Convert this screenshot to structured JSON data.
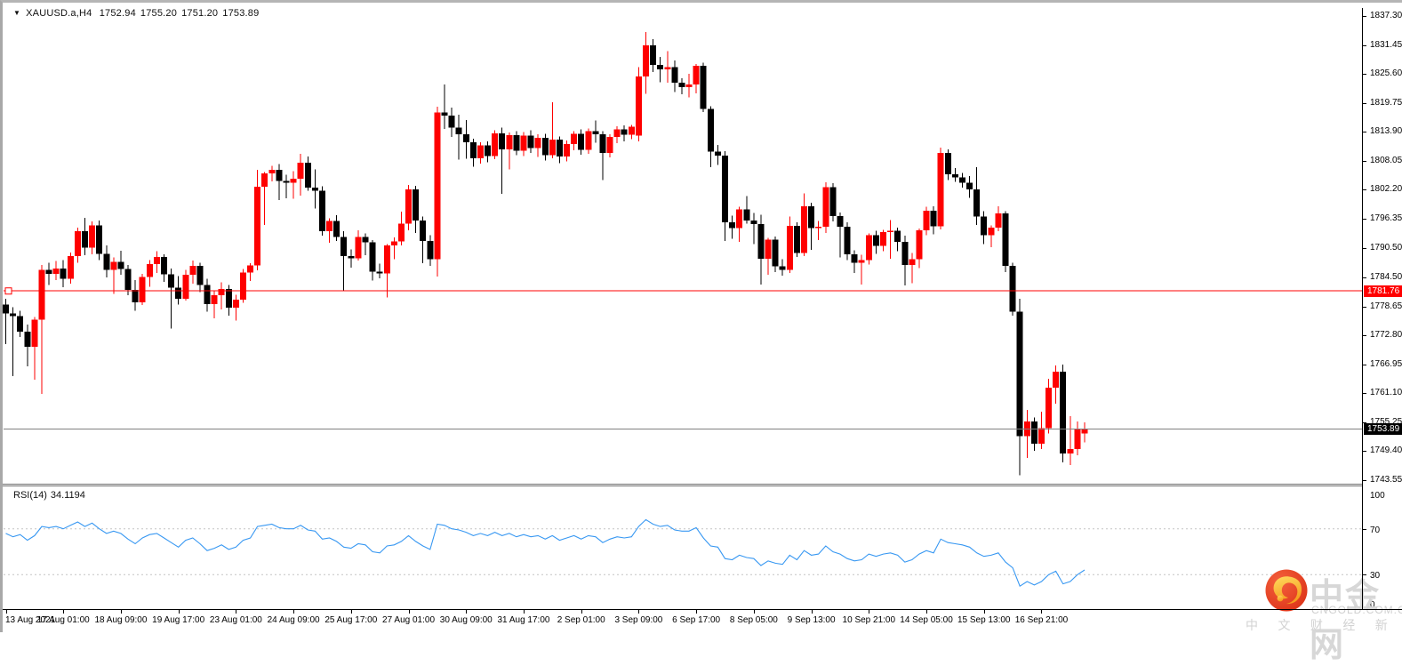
{
  "header": {
    "symbol": "XAUUSD.a,H4",
    "open": "1752.94",
    "high": "1755.20",
    "low": "1751.20",
    "close": "1753.89"
  },
  "price_axis": {
    "ticks": [
      "1837.30",
      "1831.45",
      "1825.60",
      "1819.75",
      "1813.90",
      "1808.05",
      "1802.20",
      "1796.35",
      "1790.50",
      "1784.50",
      "1778.65",
      "1772.80",
      "1766.95",
      "1761.10",
      "1755.25",
      "1749.40",
      "1743.55"
    ]
  },
  "time_axis": {
    "labels": [
      "13 Aug 2021",
      "17 Aug 01:00",
      "18 Aug 09:00",
      "19 Aug 17:00",
      "23 Aug 01:00",
      "24 Aug 09:00",
      "25 Aug 17:00",
      "27 Aug 01:00",
      "30 Aug 09:00",
      "31 Aug 17:00",
      "2 Sep 01:00",
      "3 Sep 09:00",
      "6 Sep 17:00",
      "8 Sep 05:00",
      "9 Sep 13:00",
      "10 Sep 21:00",
      "14 Sep 05:00",
      "15 Sep 13:00",
      "16 Sep 21:00"
    ]
  },
  "price_lines": {
    "resistance": {
      "value": "1781.76",
      "level": 1781.76,
      "color": "#ff0000",
      "label_bg": "#ff0000"
    },
    "current": {
      "value": "1753.89",
      "level": 1753.89,
      "color": "#808080",
      "label_bg": "#000000"
    }
  },
  "rsi": {
    "label": "RSI(14)",
    "value": "34.1194",
    "scale_labels": [
      "100",
      "70",
      "30",
      "0"
    ],
    "scale_values": [
      100,
      70,
      30,
      0
    ],
    "dashed_levels": [
      70,
      30
    ],
    "line_color": "#3898f2",
    "level_color": "#c3c3c3"
  },
  "watermark": {
    "brand": "中金网",
    "domain": "CNGOLD.COM.CN",
    "tagline": "中 文 财 经 新 媒 体",
    "logo_color": "#e5402a",
    "logo_swirl_color": "#ffc83d"
  },
  "colors": {
    "bull": "#fe0000",
    "bear": "#000000",
    "background": "#ffffff",
    "axis_text": "#000000"
  },
  "chart_data": {
    "type": "candlestick",
    "title": "XAUUSD.a,H4  1752.94 1755.20 1751.20 1753.89",
    "symbol": "XAUUSD.a",
    "timeframe": "H4",
    "price_range": [
      1743.55,
      1837.3
    ],
    "price_tick_step": 5.85,
    "bars_per_time_label": 8,
    "horizontal_line": 1781.76,
    "last_price": 1753.89,
    "grid": false,
    "candles_format": [
      "open",
      "high",
      "low",
      "close"
    ],
    "candles": [
      [
        1779.0,
        1780.2,
        1771.0,
        1777.2
      ],
      [
        1777.2,
        1778.5,
        1764.6,
        1776.7
      ],
      [
        1776.7,
        1777.8,
        1772.5,
        1773.5
      ],
      [
        1773.5,
        1775.0,
        1766.5,
        1770.5
      ],
      [
        1770.5,
        1776.5,
        1763.8,
        1776.0
      ],
      [
        1776.0,
        1787.0,
        1761.0,
        1786.0
      ],
      [
        1786.0,
        1787.5,
        1783.0,
        1785.2
      ],
      [
        1785.2,
        1787.8,
        1784.0,
        1786.3
      ],
      [
        1786.3,
        1788.0,
        1782.5,
        1784.2
      ],
      [
        1784.2,
        1789.5,
        1783.2,
        1788.8
      ],
      [
        1788.8,
        1794.6,
        1787.5,
        1793.8
      ],
      [
        1793.8,
        1796.5,
        1789.0,
        1790.5
      ],
      [
        1790.5,
        1795.8,
        1789.2,
        1795.0
      ],
      [
        1795.0,
        1796.0,
        1788.0,
        1789.3
      ],
      [
        1789.3,
        1791.0,
        1784.5,
        1786.0
      ],
      [
        1786.0,
        1788.5,
        1781.2,
        1787.6
      ],
      [
        1787.6,
        1789.9,
        1785.0,
        1786.2
      ],
      [
        1786.2,
        1787.0,
        1780.9,
        1782.0
      ],
      [
        1782.0,
        1784.0,
        1777.8,
        1779.5
      ],
      [
        1779.5,
        1785.2,
        1778.9,
        1784.6
      ],
      [
        1784.6,
        1788.0,
        1782.6,
        1787.2
      ],
      [
        1787.2,
        1789.8,
        1785.4,
        1788.6
      ],
      [
        1788.6,
        1789.2,
        1783.6,
        1785.1
      ],
      [
        1785.1,
        1786.3,
        1774.2,
        1782.4
      ],
      [
        1782.4,
        1784.8,
        1779.0,
        1780.2
      ],
      [
        1780.2,
        1786.0,
        1779.8,
        1785.0
      ],
      [
        1785.0,
        1787.9,
        1783.2,
        1786.8
      ],
      [
        1786.8,
        1787.5,
        1781.5,
        1783.0
      ],
      [
        1783.0,
        1784.2,
        1777.6,
        1779.1
      ],
      [
        1779.1,
        1781.8,
        1776.2,
        1780.9
      ],
      [
        1780.9,
        1783.5,
        1778.0,
        1782.2
      ],
      [
        1782.2,
        1783.0,
        1776.8,
        1778.4
      ],
      [
        1778.4,
        1781.0,
        1775.8,
        1780.0
      ],
      [
        1780.0,
        1786.2,
        1779.4,
        1785.5
      ],
      [
        1785.5,
        1787.4,
        1783.8,
        1786.9
      ],
      [
        1786.9,
        1806.2,
        1785.9,
        1802.8
      ],
      [
        1802.8,
        1805.8,
        1795.1,
        1805.5
      ],
      [
        1805.5,
        1807.0,
        1803.9,
        1806.2
      ],
      [
        1806.2,
        1807.4,
        1800.1,
        1804.0
      ],
      [
        1804.0,
        1805.2,
        1800.5,
        1803.6
      ],
      [
        1803.6,
        1806.0,
        1800.4,
        1804.4
      ],
      [
        1804.4,
        1809.5,
        1801.0,
        1807.7
      ],
      [
        1807.7,
        1808.9,
        1802.0,
        1802.6
      ],
      [
        1802.6,
        1806.3,
        1798.4,
        1802.0
      ],
      [
        1802.0,
        1802.9,
        1792.9,
        1793.8
      ],
      [
        1793.8,
        1796.4,
        1791.5,
        1795.9
      ],
      [
        1795.9,
        1797.1,
        1791.9,
        1792.7
      ],
      [
        1792.7,
        1793.8,
        1781.9,
        1788.8
      ],
      [
        1788.8,
        1790.2,
        1786.5,
        1788.4
      ],
      [
        1788.4,
        1794.0,
        1787.9,
        1792.7
      ],
      [
        1792.7,
        1793.4,
        1789.0,
        1791.6
      ],
      [
        1791.6,
        1792.0,
        1783.9,
        1785.7
      ],
      [
        1785.7,
        1787.3,
        1784.3,
        1785.3
      ],
      [
        1785.3,
        1791.2,
        1780.5,
        1791.0
      ],
      [
        1791.0,
        1792.6,
        1788.2,
        1791.8
      ],
      [
        1791.8,
        1797.8,
        1791.0,
        1795.4
      ],
      [
        1795.4,
        1803.2,
        1794.0,
        1802.3
      ],
      [
        1802.3,
        1803.0,
        1793.5,
        1796.0
      ],
      [
        1796.0,
        1796.8,
        1787.4,
        1791.9
      ],
      [
        1791.9,
        1793.0,
        1786.8,
        1788.2
      ],
      [
        1788.2,
        1819.0,
        1784.7,
        1817.8
      ],
      [
        1817.8,
        1823.5,
        1814.5,
        1817.2
      ],
      [
        1817.2,
        1818.8,
        1812.9,
        1814.8
      ],
      [
        1814.8,
        1817.4,
        1808.3,
        1813.4
      ],
      [
        1813.4,
        1816.3,
        1808.5,
        1811.8
      ],
      [
        1811.8,
        1812.5,
        1806.9,
        1808.6
      ],
      [
        1808.6,
        1811.8,
        1807.5,
        1811.2
      ],
      [
        1811.2,
        1812.0,
        1807.8,
        1809.0
      ],
      [
        1809.0,
        1814.2,
        1808.4,
        1813.6
      ],
      [
        1813.6,
        1814.8,
        1801.4,
        1810.4
      ],
      [
        1810.4,
        1813.8,
        1806.3,
        1813.2
      ],
      [
        1813.2,
        1814.0,
        1809.2,
        1810.1
      ],
      [
        1810.1,
        1813.9,
        1809.0,
        1813.1
      ],
      [
        1813.1,
        1814.2,
        1809.6,
        1810.6
      ],
      [
        1810.6,
        1813.4,
        1808.8,
        1812.7
      ],
      [
        1812.7,
        1813.5,
        1808.1,
        1809.2
      ],
      [
        1809.2,
        1819.9,
        1808.6,
        1812.3
      ],
      [
        1812.3,
        1813.0,
        1807.6,
        1808.9
      ],
      [
        1808.9,
        1812.2,
        1807.9,
        1811.4
      ],
      [
        1811.4,
        1814.0,
        1810.2,
        1813.5
      ],
      [
        1813.5,
        1814.4,
        1809.3,
        1810.3
      ],
      [
        1810.3,
        1814.6,
        1809.5,
        1814.0
      ],
      [
        1814.0,
        1816.2,
        1811.7,
        1813.4
      ],
      [
        1813.4,
        1814.0,
        1804.2,
        1809.6
      ],
      [
        1809.6,
        1813.4,
        1808.7,
        1812.9
      ],
      [
        1812.9,
        1815.0,
        1811.6,
        1814.4
      ],
      [
        1814.4,
        1815.2,
        1812.0,
        1813.3
      ],
      [
        1813.3,
        1815.3,
        1812.4,
        1814.9
      ],
      [
        1813.1,
        1827.0,
        1812.0,
        1825.1
      ],
      [
        1825.1,
        1834.1,
        1821.6,
        1831.4
      ],
      [
        1831.4,
        1832.6,
        1826.0,
        1827.4
      ],
      [
        1827.4,
        1829.0,
        1823.9,
        1826.5
      ],
      [
        1826.5,
        1830.2,
        1823.8,
        1827.0
      ],
      [
        1827.0,
        1828.3,
        1821.9,
        1823.8
      ],
      [
        1823.8,
        1824.7,
        1821.5,
        1822.9
      ],
      [
        1822.9,
        1825.6,
        1820.9,
        1823.5
      ],
      [
        1823.5,
        1827.6,
        1821.7,
        1827.2
      ],
      [
        1827.2,
        1827.9,
        1817.9,
        1818.5
      ],
      [
        1818.5,
        1819.1,
        1806.8,
        1809.9
      ],
      [
        1809.9,
        1811.3,
        1807.2,
        1809.1
      ],
      [
        1809.1,
        1810.0,
        1791.9,
        1795.6
      ],
      [
        1795.6,
        1797.0,
        1792.3,
        1794.5
      ],
      [
        1794.5,
        1798.8,
        1791.7,
        1798.2
      ],
      [
        1798.2,
        1800.9,
        1795.4,
        1796.0
      ],
      [
        1796.0,
        1797.5,
        1791.2,
        1795.3
      ],
      [
        1795.3,
        1797.2,
        1783.1,
        1788.3
      ],
      [
        1788.3,
        1792.5,
        1785.0,
        1792.1
      ],
      [
        1792.1,
        1792.8,
        1785.6,
        1786.7
      ],
      [
        1786.7,
        1788.2,
        1784.9,
        1786.0
      ],
      [
        1786.0,
        1796.8,
        1785.4,
        1794.9
      ],
      [
        1794.9,
        1795.6,
        1788.6,
        1789.4
      ],
      [
        1789.4,
        1801.5,
        1788.8,
        1798.9
      ],
      [
        1798.9,
        1799.6,
        1790.1,
        1794.5
      ],
      [
        1794.5,
        1795.9,
        1792.0,
        1794.7
      ],
      [
        1794.7,
        1803.7,
        1793.5,
        1802.7
      ],
      [
        1802.7,
        1803.5,
        1795.8,
        1796.9
      ],
      [
        1796.9,
        1797.6,
        1788.5,
        1794.7
      ],
      [
        1794.7,
        1795.6,
        1788.0,
        1789.2
      ],
      [
        1789.2,
        1790.0,
        1785.4,
        1787.5
      ],
      [
        1787.5,
        1789.1,
        1783.1,
        1788.0
      ],
      [
        1788.0,
        1793.4,
        1787.1,
        1793.0
      ],
      [
        1793.0,
        1793.9,
        1789.3,
        1790.9
      ],
      [
        1790.9,
        1794.1,
        1789.8,
        1793.7
      ],
      [
        1793.7,
        1796.1,
        1788.3,
        1793.9
      ],
      [
        1793.9,
        1794.6,
        1789.8,
        1791.7
      ],
      [
        1791.7,
        1792.9,
        1782.9,
        1787.0
      ],
      [
        1787.0,
        1789.4,
        1783.3,
        1788.2
      ],
      [
        1788.2,
        1794.4,
        1786.4,
        1794.0
      ],
      [
        1794.0,
        1798.8,
        1793.0,
        1798.0
      ],
      [
        1798.0,
        1798.9,
        1793.2,
        1794.8
      ],
      [
        1794.8,
        1810.7,
        1794.2,
        1809.6
      ],
      [
        1809.6,
        1810.4,
        1804.2,
        1805.3
      ],
      [
        1805.3,
        1806.6,
        1803.8,
        1804.7
      ],
      [
        1804.7,
        1805.6,
        1802.6,
        1803.6
      ],
      [
        1803.6,
        1805.0,
        1800.6,
        1802.3
      ],
      [
        1802.3,
        1806.8,
        1795.1,
        1796.8
      ],
      [
        1796.8,
        1797.9,
        1791.2,
        1793.0
      ],
      [
        1793.0,
        1795.0,
        1790.6,
        1794.6
      ],
      [
        1794.6,
        1798.9,
        1793.8,
        1797.4
      ],
      [
        1797.4,
        1797.9,
        1785.6,
        1786.8
      ],
      [
        1786.8,
        1787.5,
        1776.8,
        1777.6
      ],
      [
        1777.6,
        1780.2,
        1744.5,
        1752.4
      ],
      [
        1752.4,
        1757.7,
        1748.0,
        1755.4
      ],
      [
        1755.4,
        1756.2,
        1749.5,
        1750.9
      ],
      [
        1750.9,
        1757.4,
        1749.8,
        1754.1
      ],
      [
        1754.1,
        1764.0,
        1753.0,
        1762.2
      ],
      [
        1762.2,
        1766.7,
        1759.0,
        1765.5
      ],
      [
        1765.5,
        1766.9,
        1747.1,
        1748.9
      ],
      [
        1748.9,
        1756.5,
        1746.6,
        1749.8
      ],
      [
        1749.8,
        1755.4,
        1748.6,
        1754.0
      ],
      [
        1752.94,
        1755.2,
        1751.2,
        1753.89
      ]
    ],
    "rsi_indicator": {
      "name": "RSI(14)",
      "current_value": 34.1194,
      "range": [
        0,
        100
      ],
      "levels": [
        70,
        30
      ],
      "values": [
        66,
        63,
        65,
        60,
        64,
        72,
        71,
        72,
        70,
        73,
        76,
        72,
        75,
        70,
        66,
        68,
        66,
        61,
        57,
        62,
        65,
        66,
        62,
        58,
        54,
        60,
        62,
        57,
        51,
        53,
        56,
        52,
        54,
        60,
        62,
        72,
        73,
        74,
        71,
        70,
        70,
        73,
        69,
        68,
        61,
        62,
        59,
        54,
        53,
        57,
        56,
        50,
        49,
        55,
        56,
        59,
        64,
        59,
        55,
        52,
        74,
        73,
        70,
        69,
        67,
        64,
        66,
        64,
        67,
        64,
        66,
        63,
        65,
        63,
        64,
        61,
        64,
        60,
        62,
        64,
        61,
        64,
        63,
        58,
        61,
        63,
        62,
        63,
        72,
        78,
        74,
        72,
        73,
        69,
        68,
        68,
        71,
        62,
        55,
        54,
        44,
        43,
        47,
        45,
        44,
        38,
        42,
        40,
        39,
        47,
        43,
        51,
        47,
        48,
        55,
        50,
        48,
        44,
        42,
        43,
        48,
        46,
        48,
        49,
        47,
        41,
        43,
        48,
        51,
        49,
        61,
        58,
        57,
        56,
        54,
        49,
        46,
        47,
        49,
        41,
        36,
        20,
        24,
        21,
        24,
        30,
        33,
        22,
        24,
        30,
        34.12
      ]
    }
  }
}
